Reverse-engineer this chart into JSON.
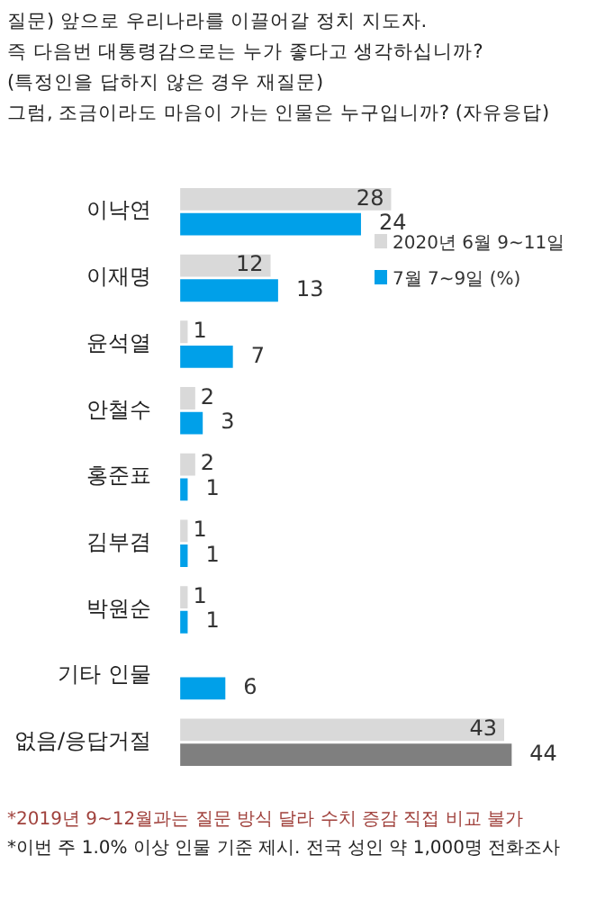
{
  "chart_data": {
    "type": "bar",
    "orientation": "horizontal",
    "title": "질문) 앞으로 우리나라를 이끌어갈 정치 지도자.\n즉 다음번 대통령감으로는 누가 좋다고 생각하십니까?\n(특정인을 답하지 않은 경우 재질문)\n그럼, 조금이라도 마음이 가는 인물은 누구입니까? (자유응답)",
    "categories": [
      "이낙연",
      "이재명",
      "윤석열",
      "안철수",
      "홍준표",
      "김부겸",
      "박원순",
      "기타 인물",
      "없음/응답거절"
    ],
    "series": [
      {
        "name": "2020년 6월 9~11일",
        "color": "#d9d9d9",
        "values": [
          28,
          12,
          1,
          2,
          2,
          1,
          1,
          null,
          43
        ]
      },
      {
        "name": "7월 7~9일 (%)",
        "color": "#00a0e9",
        "colors": [
          "#00a0e9",
          "#00a0e9",
          "#00a0e9",
          "#00a0e9",
          "#00a0e9",
          "#00a0e9",
          "#00a0e9",
          "#00a0e9",
          "#7f7f7f"
        ],
        "values": [
          24,
          13,
          7,
          3,
          1,
          1,
          1,
          6,
          44
        ]
      }
    ],
    "data_labels": true,
    "legend": "top right",
    "annotations": [
      "*2019년 9~12월과는 질문 방식 달라 수치 증감 직접 비교 불가",
      "*이번 주 1.0% 이상 인물 기준 제시. 전국 성인 약 1,000명 전화조사"
    ]
  }
}
